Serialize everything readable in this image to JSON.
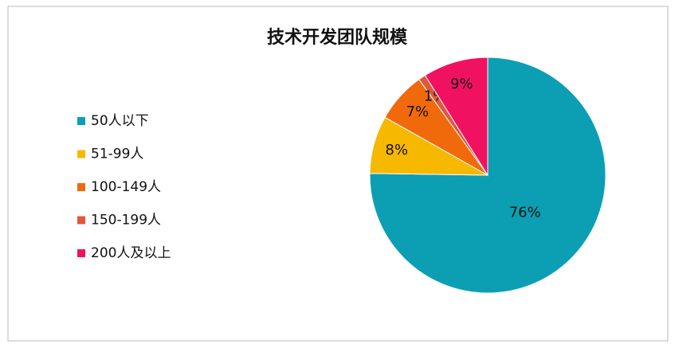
{
  "chart_data": {
    "type": "pie",
    "title": "技术开发团队规模",
    "categories": [
      "50人以下",
      "51-99人",
      "100-149人",
      "150-199人",
      "200人及以上"
    ],
    "values": [
      76,
      8,
      7,
      1,
      9
    ],
    "value_labels": [
      "76%",
      "8%",
      "7%",
      "1%",
      "9%"
    ],
    "colors": [
      "#0c9fb4",
      "#f7b800",
      "#f06a0c",
      "#e0573c",
      "#f01260"
    ],
    "legend": "left"
  }
}
